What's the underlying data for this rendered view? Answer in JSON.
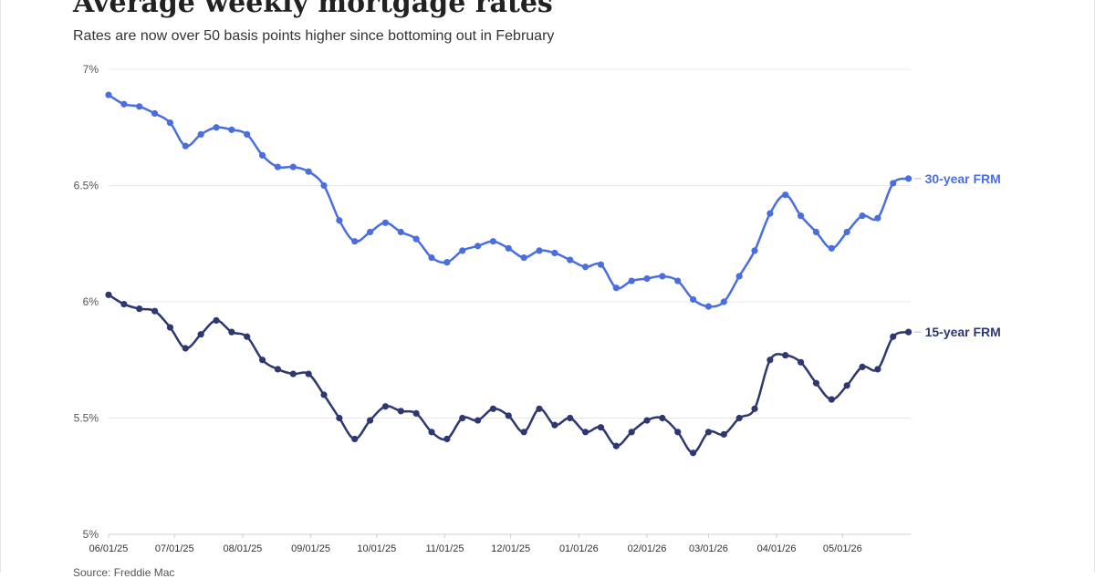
{
  "header": {
    "title": "Average weekly mortgage rates",
    "subtitle": "Rates are now over 50 basis points higher since bottoming out in February"
  },
  "footer": {
    "source": "Source: Freddie Mac"
  },
  "colors": {
    "series_30": "#4a6ee0",
    "series_15": "#2d3870"
  },
  "chart_data": {
    "type": "line",
    "title": "Average weekly mortgage rates",
    "subtitle": "Rates are now over 50 basis points higher since bottoming out in February",
    "xlabel": "",
    "ylabel": "",
    "ylim": [
      5,
      7
    ],
    "y_ticks": [
      5,
      5.5,
      6,
      6.5,
      7
    ],
    "y_tick_labels": [
      "5%",
      "5.5%",
      "6%",
      "6.5%",
      "7%"
    ],
    "x_tick_labels": [
      "06/01/25",
      "07/01/25",
      "08/01/25",
      "09/01/25",
      "10/01/25",
      "11/01/25",
      "12/01/25",
      "01/01/26",
      "02/01/26",
      "03/01/26",
      "04/01/26",
      "05/01/26"
    ],
    "x_tick_dates": [
      "2025-06-01",
      "2025-07-01",
      "2025-08-01",
      "2025-09-01",
      "2025-10-01",
      "2025-11-01",
      "2025-12-01",
      "2026-01-01",
      "2026-02-01",
      "2026-03-01",
      "2026-04-01",
      "2026-05-01"
    ],
    "x_range": [
      "2025-06-01",
      "2026-06-01"
    ],
    "grid": true,
    "x": [
      "2025-06-01",
      "2025-06-08",
      "2025-06-15",
      "2025-06-22",
      "2025-06-29",
      "2025-07-06",
      "2025-07-13",
      "2025-07-20",
      "2025-07-27",
      "2025-08-03",
      "2025-08-10",
      "2025-08-17",
      "2025-08-24",
      "2025-08-31",
      "2025-09-07",
      "2025-09-14",
      "2025-09-21",
      "2025-09-28",
      "2025-10-05",
      "2025-10-12",
      "2025-10-19",
      "2025-10-26",
      "2025-11-02",
      "2025-11-09",
      "2025-11-16",
      "2025-11-23",
      "2025-11-30",
      "2025-12-07",
      "2025-12-14",
      "2025-12-21",
      "2025-12-28",
      "2026-01-04",
      "2026-01-11",
      "2026-01-18",
      "2026-01-25",
      "2026-02-01",
      "2026-02-08",
      "2026-02-15",
      "2026-02-22",
      "2026-03-01",
      "2026-03-08",
      "2026-03-15",
      "2026-03-22",
      "2026-03-29",
      "2026-04-05",
      "2026-04-12",
      "2026-04-19",
      "2026-04-26",
      "2026-05-03",
      "2026-05-10",
      "2026-05-17",
      "2026-05-24",
      "2026-05-31"
    ],
    "series": [
      {
        "name": "30-year FRM",
        "values": [
          6.89,
          6.85,
          6.84,
          6.81,
          6.77,
          6.67,
          6.72,
          6.75,
          6.74,
          6.72,
          6.63,
          6.58,
          6.58,
          6.56,
          6.5,
          6.35,
          6.26,
          6.3,
          6.34,
          6.3,
          6.27,
          6.19,
          6.17,
          6.22,
          6.24,
          6.26,
          6.23,
          6.19,
          6.22,
          6.21,
          6.18,
          6.15,
          6.16,
          6.06,
          6.09,
          6.1,
          6.11,
          6.09,
          6.01,
          5.98,
          6.0,
          6.11,
          6.22,
          6.38,
          6.46,
          6.37,
          6.3,
          6.23,
          6.3,
          6.37,
          6.36,
          6.51,
          6.53
        ]
      },
      {
        "name": "15-year FRM",
        "values": [
          6.03,
          5.99,
          5.97,
          5.96,
          5.89,
          5.8,
          5.86,
          5.92,
          5.87,
          5.85,
          5.75,
          5.71,
          5.69,
          5.69,
          5.6,
          5.5,
          5.41,
          5.49,
          5.55,
          5.53,
          5.52,
          5.44,
          5.41,
          5.5,
          5.49,
          5.54,
          5.51,
          5.44,
          5.54,
          5.47,
          5.5,
          5.44,
          5.46,
          5.38,
          5.44,
          5.49,
          5.5,
          5.44,
          5.35,
          5.44,
          5.43,
          5.5,
          5.54,
          5.75,
          5.77,
          5.74,
          5.65,
          5.58,
          5.64,
          5.72,
          5.71,
          5.85,
          5.87
        ]
      }
    ]
  }
}
